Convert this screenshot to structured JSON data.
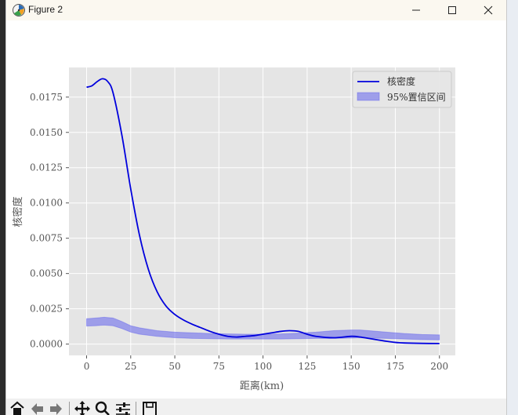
{
  "window": {
    "title": "Figure 2",
    "minimize_icon": "minimize-icon",
    "maximize_icon": "maximize-icon",
    "close_icon": "close-icon",
    "app_icon": "matplotlib-figure-icon"
  },
  "toolbar": {
    "buttons": [
      "home-icon",
      "back-icon",
      "forward-icon",
      "pan-icon",
      "zoom-icon",
      "configure-subplots-icon",
      "save-icon"
    ]
  },
  "colors": {
    "plot_bg": "#e5e5e5",
    "grid": "#ffffff",
    "line": "#0000dd",
    "band": "#5555ee",
    "text": "#555555"
  },
  "chart_data": {
    "type": "line",
    "title": "",
    "xlabel": "距离(km)",
    "ylabel": "核密度",
    "xlim": [
      -10,
      209
    ],
    "ylim": [
      -0.0008,
      0.0196
    ],
    "xticks": [
      0,
      25,
      50,
      75,
      100,
      125,
      150,
      175,
      200
    ],
    "xtick_labels": [
      "0",
      "25",
      "50",
      "75",
      "100",
      "125",
      "150",
      "175",
      "200"
    ],
    "yticks": [
      0.0,
      0.0025,
      0.005,
      0.0075,
      0.01,
      0.0125,
      0.015,
      0.0175
    ],
    "ytick_labels": [
      "0.0000",
      "0.0025",
      "0.0050",
      "0.0075",
      "0.0100",
      "0.0125",
      "0.0150",
      "0.0175"
    ],
    "grid": true,
    "legend_position": "top-right",
    "series": [
      {
        "name": "核密度",
        "kind": "line",
        "color": "#0000dd",
        "x": [
          0,
          3,
          6,
          9,
          12,
          15,
          20,
          25,
          30,
          35,
          40,
          45,
          50,
          55,
          60,
          65,
          70,
          75,
          80,
          85,
          90,
          95,
          100,
          105,
          110,
          115,
          120,
          125,
          130,
          140,
          150,
          155,
          160,
          165,
          170,
          175,
          180,
          190,
          200
        ],
        "y": [
          0.0182,
          0.0183,
          0.0186,
          0.0188,
          0.0186,
          0.0178,
          0.0148,
          0.011,
          0.0077,
          0.0053,
          0.0037,
          0.0027,
          0.0021,
          0.0017,
          0.0014,
          0.00115,
          0.0009,
          0.0007,
          0.00055,
          0.0005,
          0.00055,
          0.0006,
          0.0007,
          0.0008,
          0.0009,
          0.00095,
          0.0009,
          0.0007,
          0.00055,
          0.00045,
          0.00055,
          0.0005,
          0.0004,
          0.0003,
          0.0002,
          0.00012,
          8e-05,
          5e-05,
          4e-05
        ]
      },
      {
        "name": "95%置信区间",
        "kind": "band",
        "color": "#5555ee",
        "x": [
          0,
          5,
          10,
          15,
          20,
          25,
          30,
          40,
          50,
          60,
          70,
          80,
          90,
          100,
          110,
          120,
          130,
          140,
          150,
          155,
          160,
          170,
          180,
          190,
          200
        ],
        "lower": [
          0.00128,
          0.0013,
          0.00135,
          0.0013,
          0.0011,
          0.00085,
          0.0007,
          0.00055,
          0.00045,
          0.0004,
          0.00038,
          0.00036,
          0.00036,
          0.00036,
          0.00036,
          0.00038,
          0.0004,
          0.0004,
          0.00042,
          0.00045,
          0.00042,
          0.0004,
          0.00036,
          0.00032,
          0.0003
        ],
        "upper": [
          0.0018,
          0.00185,
          0.0019,
          0.00185,
          0.0016,
          0.0013,
          0.00115,
          0.00095,
          0.00085,
          0.0008,
          0.00075,
          0.00072,
          0.0007,
          0.0007,
          0.00072,
          0.00078,
          0.00085,
          0.00095,
          0.001,
          0.001,
          0.00095,
          0.00085,
          0.00075,
          0.00068,
          0.00065
        ]
      }
    ]
  }
}
